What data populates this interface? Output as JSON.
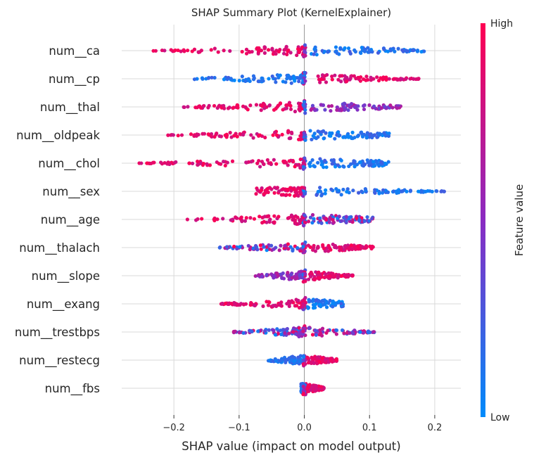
{
  "chart_data": {
    "type": "scatter",
    "title": "SHAP Summary Plot (KernelExplainer)",
    "xlabel": "SHAP value (impact on model output)",
    "xlim": [
      -0.28,
      0.24
    ],
    "xticks": [
      -0.2,
      -0.1,
      0.0,
      0.1,
      0.2
    ],
    "xtick_labels": [
      "−0.2",
      "−0.1",
      "0.0",
      "0.1",
      "0.2"
    ],
    "grid": "vertical and horizontal, light gray",
    "colorbar": {
      "label": "Feature value",
      "high_label": "High",
      "low_label": "Low",
      "low_color": "#008bfb",
      "mid_color": "#8a2bc2",
      "high_color": "#ff0052"
    },
    "features": [
      {
        "name": "num__ca",
        "min": -0.235,
        "max": 0.185,
        "negColor": "high",
        "posColor": "low"
      },
      {
        "name": "num__cp",
        "min": -0.18,
        "max": 0.18,
        "negColor": "low",
        "posColor": "high"
      },
      {
        "name": "num__thal",
        "min": -0.195,
        "max": 0.15,
        "negColor": "high",
        "posColor": "mid"
      },
      {
        "name": "num__oldpeak",
        "min": -0.21,
        "max": 0.13,
        "negColor": "high",
        "posColor": "low"
      },
      {
        "name": "num__chol",
        "min": -0.255,
        "max": 0.13,
        "negColor": "high",
        "posColor": "low"
      },
      {
        "name": "num__sex",
        "min": -0.075,
        "max": 0.215,
        "negColor": "high",
        "posColor": "low"
      },
      {
        "name": "num__age",
        "min": -0.19,
        "max": 0.105,
        "negColor": "high",
        "posColor": "mixed"
      },
      {
        "name": "num__thalach",
        "min": -0.13,
        "max": 0.11,
        "negColor": "mixed",
        "posColor": "high"
      },
      {
        "name": "num__slope",
        "min": -0.075,
        "max": 0.075,
        "negColor": "mid",
        "posColor": "high"
      },
      {
        "name": "num__exang",
        "min": -0.13,
        "max": 0.06,
        "negColor": "high",
        "posColor": "low"
      },
      {
        "name": "num__trestbps",
        "min": -0.11,
        "max": 0.11,
        "negColor": "mixed",
        "posColor": "mixed"
      },
      {
        "name": "num__restecg",
        "min": -0.055,
        "max": 0.05,
        "negColor": "low",
        "posColor": "high"
      },
      {
        "name": "num__fbs",
        "min": -0.005,
        "max": 0.03,
        "negColor": "low",
        "posColor": "high"
      }
    ]
  }
}
